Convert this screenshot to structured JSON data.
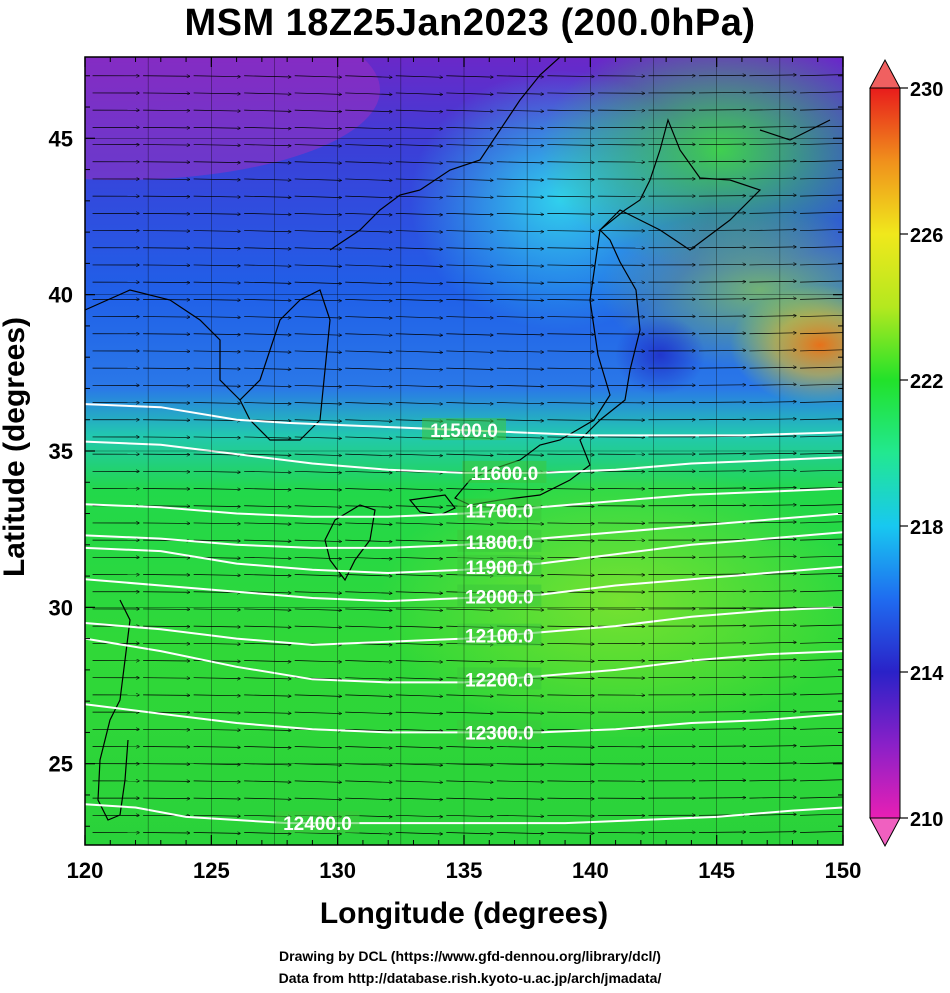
{
  "title": "MSM 18Z25Jan2023 (200.0hPa)",
  "xlabel": "Longitude (degrees)",
  "ylabel": "Latitude  (degrees)",
  "credits": {
    "line1": "Drawing by DCL (https://www.gfd-dennou.org/library/dcl/)",
    "line2": "Data from http://database.rish.kyoto-u.ac.jp/arch/jmadata/"
  },
  "chart_data": {
    "type": "heatmap",
    "xlim": [
      120,
      150
    ],
    "ylim": [
      22.4,
      47.6
    ],
    "xticks": [
      "120",
      "125",
      "130",
      "135",
      "140",
      "145",
      "150"
    ],
    "yticks": [
      "25",
      "30",
      "35",
      "40",
      "45"
    ],
    "xtick_values": [
      120,
      125,
      130,
      135,
      140,
      145,
      150
    ],
    "ytick_values": [
      25,
      30,
      35,
      40,
      45
    ],
    "grid": true,
    "colorbar": {
      "min": 210,
      "max": 230,
      "ticks": [
        "230",
        "226",
        "222",
        "218",
        "214",
        "210"
      ],
      "tick_values": [
        230,
        226,
        222,
        218,
        214,
        210
      ],
      "colors": [
        "#e81fb4",
        "#8a20c8",
        "#2a22c8",
        "#1f6cf0",
        "#18c8f0",
        "#22e890",
        "#22e22a",
        "#b4e81f",
        "#f0e81c",
        "#f0901c",
        "#e81c1c"
      ]
    },
    "contours": [
      {
        "label": "11500.0",
        "label_lon": 135.0,
        "points": [
          [
            120,
            36.5
          ],
          [
            123,
            36.4
          ],
          [
            126,
            36.0
          ],
          [
            128,
            35.9
          ],
          [
            131,
            35.8
          ],
          [
            134,
            35.7
          ],
          [
            137,
            35.6
          ],
          [
            140,
            35.5
          ],
          [
            143,
            35.5
          ],
          [
            146,
            35.5
          ],
          [
            150,
            35.6
          ]
        ]
      },
      {
        "label": "11600.0",
        "label_lon": 136.6,
        "points": [
          [
            120,
            35.3
          ],
          [
            123,
            35.2
          ],
          [
            126,
            34.9
          ],
          [
            129,
            34.6
          ],
          [
            132,
            34.4
          ],
          [
            135,
            34.3
          ],
          [
            138,
            34.3
          ],
          [
            141,
            34.4
          ],
          [
            144,
            34.6
          ],
          [
            147,
            34.7
          ],
          [
            150,
            34.8
          ]
        ]
      },
      {
        "label": "11700.0",
        "label_lon": 136.4,
        "points": [
          [
            120,
            33.3
          ],
          [
            123,
            33.2
          ],
          [
            126,
            33.0
          ],
          [
            129,
            32.9
          ],
          [
            132,
            32.9
          ],
          [
            135,
            33.0
          ],
          [
            138,
            33.2
          ],
          [
            141,
            33.4
          ],
          [
            144,
            33.6
          ],
          [
            147,
            33.7
          ],
          [
            150,
            33.8
          ]
        ]
      },
      {
        "label": "11800.0",
        "label_lon": 136.4,
        "points": [
          [
            120,
            32.3
          ],
          [
            123,
            32.2
          ],
          [
            126,
            32.0
          ],
          [
            129,
            31.9
          ],
          [
            132,
            31.9
          ],
          [
            135,
            32.0
          ],
          [
            138,
            32.2
          ],
          [
            141,
            32.4
          ],
          [
            144,
            32.6
          ],
          [
            147,
            32.8
          ],
          [
            150,
            33.0
          ]
        ]
      },
      {
        "label": "11900.0",
        "label_lon": 136.4,
        "points": [
          [
            120,
            31.9
          ],
          [
            123,
            31.8
          ],
          [
            126,
            31.4
          ],
          [
            129,
            31.2
          ],
          [
            132,
            31.1
          ],
          [
            135,
            31.2
          ],
          [
            138,
            31.4
          ],
          [
            141,
            31.7
          ],
          [
            144,
            32.0
          ],
          [
            147,
            32.2
          ],
          [
            150,
            32.4
          ]
        ]
      },
      {
        "label": "12000.0",
        "label_lon": 136.4,
        "points": [
          [
            120,
            30.9
          ],
          [
            123,
            30.7
          ],
          [
            126,
            30.5
          ],
          [
            129,
            30.3
          ],
          [
            132,
            30.2
          ],
          [
            135,
            30.3
          ],
          [
            138,
            30.4
          ],
          [
            141,
            30.7
          ],
          [
            144,
            30.9
          ],
          [
            147,
            31.1
          ],
          [
            150,
            31.3
          ]
        ]
      },
      {
        "label": "12100.0",
        "label_lon": 136.4,
        "points": [
          [
            120,
            29.5
          ],
          [
            123,
            29.3
          ],
          [
            126,
            29.0
          ],
          [
            129,
            28.8
          ],
          [
            132,
            28.9
          ],
          [
            135,
            29.0
          ],
          [
            138,
            29.2
          ],
          [
            141,
            29.4
          ],
          [
            144,
            29.7
          ],
          [
            147,
            29.9
          ],
          [
            150,
            30.0
          ]
        ]
      },
      {
        "label": "12200.0",
        "label_lon": 136.4,
        "points": [
          [
            120,
            29.0
          ],
          [
            123,
            28.6
          ],
          [
            126,
            28.1
          ],
          [
            129,
            27.7
          ],
          [
            132,
            27.6
          ],
          [
            135,
            27.6
          ],
          [
            138,
            27.8
          ],
          [
            141,
            28.0
          ],
          [
            144,
            28.3
          ],
          [
            147,
            28.5
          ],
          [
            150,
            28.6
          ]
        ]
      },
      {
        "label": "12300.0",
        "label_lon": 136.4,
        "points": [
          [
            120,
            26.9
          ],
          [
            123,
            26.6
          ],
          [
            126,
            26.3
          ],
          [
            129,
            26.1
          ],
          [
            132,
            26.0
          ],
          [
            135,
            26.0
          ],
          [
            138,
            26.0
          ],
          [
            141,
            26.1
          ],
          [
            144,
            26.3
          ],
          [
            147,
            26.4
          ],
          [
            150,
            26.6
          ]
        ]
      },
      {
        "label": "12400.0",
        "label_lon": 129.2,
        "points": [
          [
            120,
            23.7
          ],
          [
            122,
            23.6
          ],
          [
            124,
            23.3
          ],
          [
            126,
            23.2
          ],
          [
            128,
            23.1
          ],
          [
            130,
            23.1
          ],
          [
            133,
            23.1
          ],
          [
            136,
            23.1
          ],
          [
            139,
            23.1
          ],
          [
            142,
            23.2
          ],
          [
            145,
            23.3
          ],
          [
            148,
            23.5
          ],
          [
            150,
            23.6
          ]
        ]
      }
    ]
  }
}
